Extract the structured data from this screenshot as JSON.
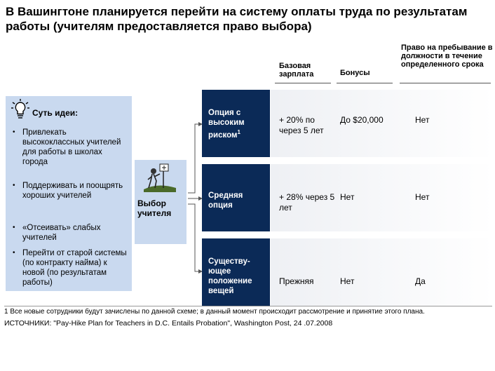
{
  "title": "В Вашингтоне планируется перейти на систему оплаты труда по результатам работы (учителям предоставляется право выбора)",
  "column_headers": {
    "base_salary": "Базовая зарплата",
    "bonuses": "Бонусы",
    "tenure": "Право на пребывание в должности в течение определенного срока"
  },
  "idea": {
    "heading": "Суть идеи:",
    "bullets": [
      "Привлекать высококлассных учителей для работы в школах города",
      "Поддерживать и поощрять хороших учителей",
      "«Отсеивать» слабых учителей",
      "Перейти от старой системы (по контракту найма) к новой (по результатам работы)"
    ]
  },
  "teacher_choice": "Выбор учителя",
  "options": [
    {
      "label": "Опция с высоким риском",
      "sup": "1",
      "base_salary": "+ 20% по через 5 лет",
      "bonuses": "До $20,000",
      "tenure": "Нет"
    },
    {
      "label": "Средняя опция",
      "sup": "",
      "base_salary": "+ 28% через 5 лет",
      "bonuses": "Нет",
      "tenure": "Нет"
    },
    {
      "label": "Существу-ющее положение вещей",
      "sup": "",
      "base_salary": "Прежняя",
      "bonuses": "Нет",
      "tenure": "Да"
    }
  ],
  "footnote": "1 Все новые сотрудники будут зачислены по данной схеме; в данный момент происходит рассмотрение и принятие этого плана.",
  "source": "ИСТОЧНИКИ: \"Pay-Hike Plan for Teachers in D.C. Entails Probation\", Washington Post, 24 .07.2008",
  "colors": {
    "dark_box": "#0b2a57",
    "light_panel": "#c9d9ef"
  }
}
